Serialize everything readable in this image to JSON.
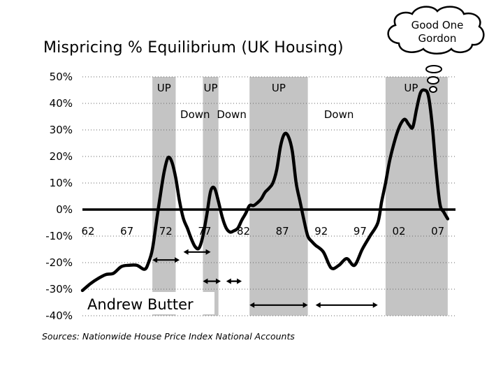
{
  "title": "Mispricing % Equilibrium (UK Housing)",
  "source": "Sources: Nationwide House Price Index National Accounts",
  "thought_bubble": [
    "Good One",
    "Gordon"
  ],
  "author": "Andrew Butter",
  "chart_data": {
    "type": "line",
    "title": "Mispricing % Equilibrium (UK Housing)",
    "xlabel": "",
    "ylabel": "",
    "xlim": [
      1962,
      2010
    ],
    "ylim": [
      -40,
      50
    ],
    "y_ticks": [
      50,
      40,
      30,
      20,
      10,
      0,
      -10,
      -20,
      -30,
      -40
    ],
    "y_tick_labels": [
      "50%",
      "40%",
      "30%",
      "20%",
      "10%",
      "0%",
      "-10%",
      "-20%",
      "-30%",
      "-40%"
    ],
    "x_ticks": [
      1962,
      1967,
      1972,
      1977,
      1982,
      1987,
      1992,
      1997,
      2002,
      2007
    ],
    "x_tick_labels": [
      "62",
      "67",
      "72",
      "77",
      "82",
      "87",
      "92",
      "97",
      "02",
      "07"
    ],
    "grid": "horizontal dotted",
    "x": [
      1962,
      1963,
      1964,
      1965,
      1966,
      1967,
      1968,
      1969,
      1970,
      1970.5,
      1971,
      1971.5,
      1972,
      1972.5,
      1973,
      1973.5,
      1974,
      1974.5,
      1975,
      1975.5,
      1976,
      1976.5,
      1977,
      1977.5,
      1978,
      1978.5,
      1979,
      1979.5,
      1980,
      1980.5,
      1981,
      1981.5,
      1982,
      1982.5,
      1983,
      1983.5,
      1984,
      1984.5,
      1985,
      1985.5,
      1986,
      1986.5,
      1987,
      1987.5,
      1988,
      1988.5,
      1989,
      1989.5,
      1990,
      1990.5,
      1991,
      1991.5,
      1992,
      1993,
      1994,
      1995,
      1996,
      1997,
      1998,
      1999,
      2000,
      2000.5,
      2001,
      2001.5,
      2002,
      2002.5,
      2003,
      2003.5,
      2004,
      2004.5,
      2005,
      2005.5,
      2006,
      2006.5,
      2007,
      2007.5,
      2008,
      2008.5,
      2009
    ],
    "values": [
      -30.5,
      -28,
      -26,
      -24.5,
      -24,
      -21.5,
      -21,
      -21,
      -22.5,
      -20,
      -15,
      -5,
      5,
      14,
      19.5,
      18,
      12,
      3,
      -3.5,
      -7,
      -11,
      -14,
      -14.5,
      -10,
      -2,
      7,
      8,
      3,
      -3,
      -7,
      -8.5,
      -8,
      -7,
      -4,
      -1.5,
      1.5,
      1.5,
      2.5,
      4,
      6.5,
      8,
      10,
      15,
      24,
      28.5,
      27.5,
      22,
      10,
      3,
      -4,
      -10,
      -12,
      -13.5,
      -16,
      -22,
      -21,
      -18.5,
      -21,
      -15,
      -10,
      -5,
      3,
      10,
      18,
      24,
      29,
      32.5,
      34,
      32,
      31,
      38,
      44,
      45,
      43,
      32,
      15,
      2,
      -1,
      -3.5
    ],
    "bands": [
      {
        "start": 1971.0,
        "end": 1974.0,
        "label": "UP"
      },
      {
        "start": 1977.5,
        "end": 1979.5,
        "label": "UP"
      },
      {
        "start": 1983.5,
        "end": 1991.0,
        "label": "UP"
      },
      {
        "start": 2001.0,
        "end": 2009.0,
        "label": "UP"
      }
    ],
    "down_labels": [
      {
        "x": 1976.5,
        "text": "Down"
      },
      {
        "x": 1981.2,
        "text": "Down"
      },
      {
        "x": 1995.0,
        "text": "Down"
      }
    ],
    "arrows": [
      {
        "from": 1971.0,
        "to": 1974.5,
        "y": -19
      },
      {
        "from": 1975.0,
        "to": 1978.5,
        "y": -16
      },
      {
        "from": 1977.5,
        "to": 1979.8,
        "y": -27
      },
      {
        "from": 1980.5,
        "to": 1982.5,
        "y": -27
      },
      {
        "from": 1983.5,
        "to": 1991.0,
        "y": -36
      },
      {
        "from": 1992.0,
        "to": 2000.0,
        "y": -36
      }
    ]
  }
}
